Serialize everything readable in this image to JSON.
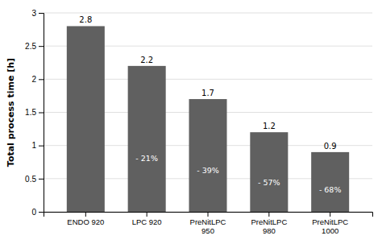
{
  "chart_data": {
    "type": "bar",
    "categories": [
      "ENDO 920",
      "LPC 920",
      "PreNitLPC\n950",
      "PreNitLPC\n980",
      "PreNitLPC\n1000"
    ],
    "values": [
      2.8,
      2.2,
      1.7,
      1.2,
      0.9
    ],
    "color": "#606060",
    "data_labels": true,
    "annotations": [
      {
        "text": "- 21%",
        "category": "LPC 920"
      },
      {
        "text": "- 39%",
        "category": "PreNitLPC\n950"
      },
      {
        "text": "- 57%",
        "category": "PreNitLPC\n980"
      },
      {
        "text": "- 68%",
        "category": "PreNitLPC\n1000"
      }
    ],
    "ylabel": "Total process time [h]",
    "ylim": [
      0,
      3.0
    ],
    "yticks": [
      0,
      0.5,
      1,
      1.5,
      2,
      2.5,
      3
    ],
    "grid": true
  }
}
